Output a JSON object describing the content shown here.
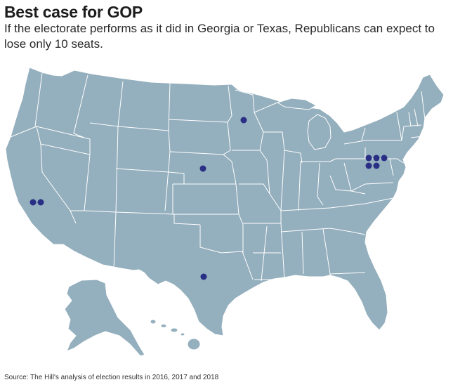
{
  "header": {
    "title": "Best case for GOP",
    "subtitle": "If the electorate performs as it did in Georgia or Texas, Republicans can expect to lose only 10 seats."
  },
  "footer": {
    "source": "Source: The Hill's analysis of election results in 2016, 2017 and 2018"
  },
  "map": {
    "region": "United States",
    "land_color": "#94afbd",
    "border_color": "#ffffff",
    "marker_color": "#2a2f86",
    "markers": [
      {
        "state": "California",
        "count": 2
      },
      {
        "state": "Minnesota",
        "count": 1
      },
      {
        "state": "Nebraska",
        "count": 1
      },
      {
        "state": "Texas",
        "count": 1
      },
      {
        "state": "Pennsylvania",
        "count": 5
      }
    ]
  }
}
